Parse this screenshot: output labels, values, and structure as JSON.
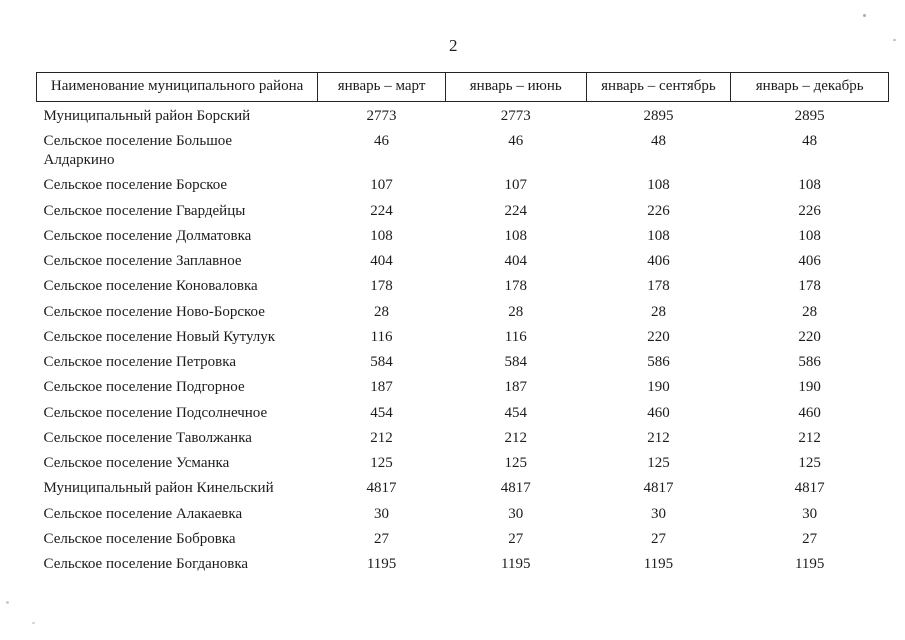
{
  "page": {
    "number": "2"
  },
  "table": {
    "columns": [
      "Наименование муниципального района",
      "январь – март",
      "январь – июнь",
      "январь – сентябрь",
      "январь – декабрь"
    ],
    "rows": [
      {
        "name": "Муниципальный район Борский",
        "values": [
          "2773",
          "2773",
          "2895",
          "2895"
        ]
      },
      {
        "name": "Сельское поселение Большое Алдаркино",
        "values": [
          "46",
          "46",
          "48",
          "48"
        ]
      },
      {
        "name": "Сельское поселение Борское",
        "values": [
          "107",
          "107",
          "108",
          "108"
        ]
      },
      {
        "name": "Сельское поселение Гвардейцы",
        "values": [
          "224",
          "224",
          "226",
          "226"
        ]
      },
      {
        "name": "Сельское поселение Долматовка",
        "values": [
          "108",
          "108",
          "108",
          "108"
        ]
      },
      {
        "name": "Сельское поселение Заплавное",
        "values": [
          "404",
          "404",
          "406",
          "406"
        ]
      },
      {
        "name": "Сельское поселение Коноваловка",
        "values": [
          "178",
          "178",
          "178",
          "178"
        ]
      },
      {
        "name": "Сельское поселение Ново-Борское",
        "values": [
          "28",
          "28",
          "28",
          "28"
        ]
      },
      {
        "name": "Сельское поселение Новый Кутулук",
        "values": [
          "116",
          "116",
          "220",
          "220"
        ]
      },
      {
        "name": "Сельское поселение Петровка",
        "values": [
          "584",
          "584",
          "586",
          "586"
        ]
      },
      {
        "name": "Сельское поселение Подгорное",
        "values": [
          "187",
          "187",
          "190",
          "190"
        ]
      },
      {
        "name": "Сельское поселение Подсолнечное",
        "values": [
          "454",
          "454",
          "460",
          "460"
        ]
      },
      {
        "name": "Сельское поселение Таволжанка",
        "values": [
          "212",
          "212",
          "212",
          "212"
        ]
      },
      {
        "name": "Сельское поселение Усманка",
        "values": [
          "125",
          "125",
          "125",
          "125"
        ]
      },
      {
        "name": "Муниципальный район Кинельский",
        "values": [
          "4817",
          "4817",
          "4817",
          "4817"
        ]
      },
      {
        "name": "Сельское поселение Алакаевка",
        "values": [
          "30",
          "30",
          "30",
          "30"
        ]
      },
      {
        "name": "Сельское поселение Бобровка",
        "values": [
          "27",
          "27",
          "27",
          "27"
        ]
      },
      {
        "name": "Сельское поселение Богдановка",
        "values": [
          "1195",
          "1195",
          "1195",
          "1195"
        ]
      }
    ]
  }
}
